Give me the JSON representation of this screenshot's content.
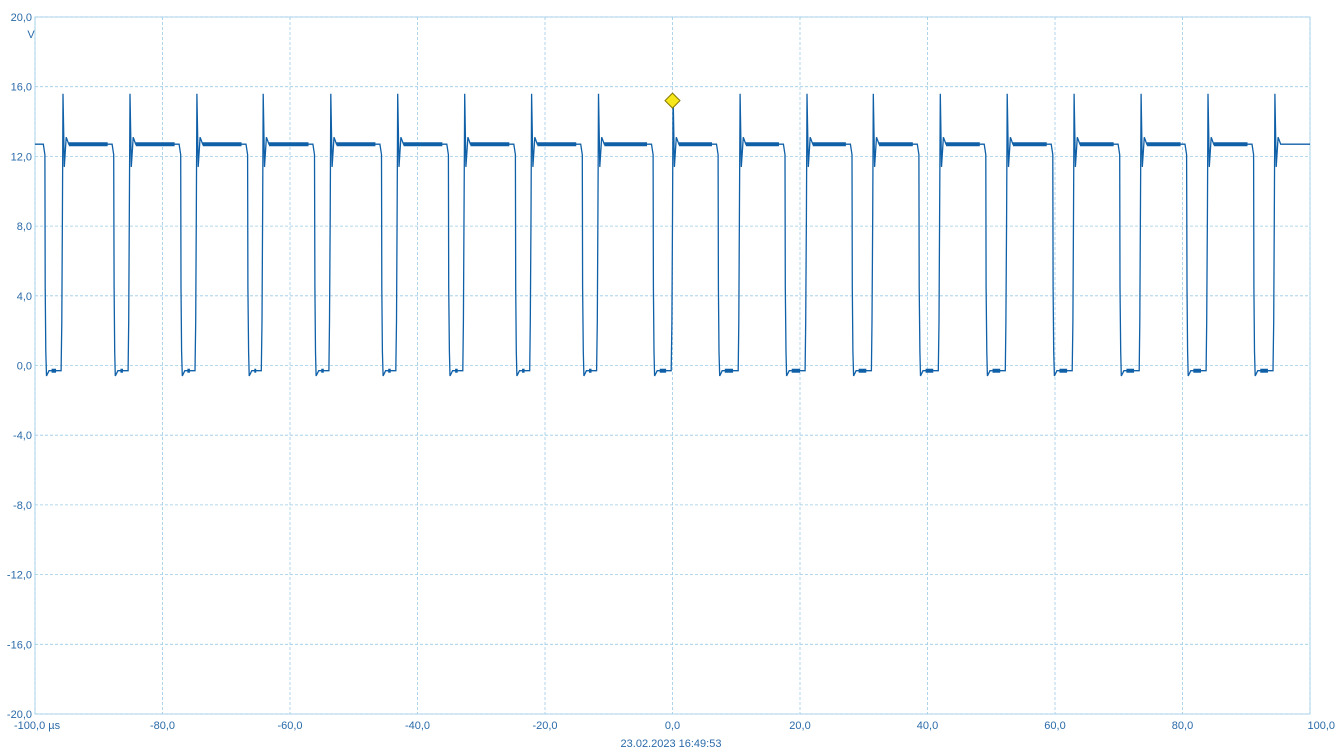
{
  "chart_data": {
    "type": "line",
    "title": "",
    "xlabel": "",
    "ylabel": "",
    "y_unit": "V",
    "x_unit": "µs",
    "xlim": [
      -100,
      100
    ],
    "ylim": [
      -20,
      20
    ],
    "grid": true,
    "x_ticks": [
      "-100,0 µs",
      "-80,0",
      "-60,0",
      "-40,0",
      "-20,0",
      "0,0",
      "20,0",
      "40,0",
      "60,0",
      "80,0",
      "100,0"
    ],
    "y_ticks": [
      "20,0",
      "16,0",
      "12,0",
      "8,0",
      "4,0",
      "0,0",
      "-4,0",
      "-8,0",
      "-12,0",
      "-16,0",
      "-20,0"
    ],
    "timestamp": "23.02.2023 16:49:53",
    "trigger": {
      "x": 0.0,
      "y": 15.2,
      "color": "#f5e71a"
    },
    "color": "#1060a8",
    "waveform": {
      "high_level": 12.7,
      "low_level": -0.3,
      "overshoot_peak": 15.6,
      "undershoot": -0.6,
      "rising_edges": [
        -95.7,
        -85.2,
        -74.7,
        -64.3,
        -53.7,
        -43.2,
        -32.7,
        -22.2,
        -11.7,
        0.0,
        10.5,
        21.0,
        31.4,
        41.9,
        52.4,
        62.9,
        73.4,
        83.9,
        94.4
      ],
      "falling_edges": [
        -98.4,
        -87.6,
        -77.1,
        -66.6,
        -56.1,
        -45.6,
        -35.1,
        -24.6,
        -14.1,
        -3.0,
        7.2,
        17.7,
        28.2,
        38.7,
        49.2,
        59.7,
        70.2,
        80.7,
        91.2
      ]
    }
  }
}
